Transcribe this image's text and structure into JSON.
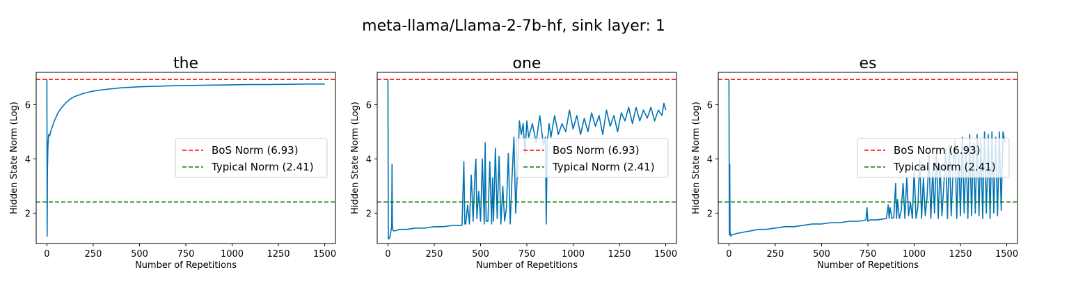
{
  "figure": {
    "suptitle": "meta-llama/Llama-2-7b-hf, sink layer: 1"
  },
  "chart_data": [
    {
      "type": "line",
      "title": "the",
      "xlabel": "Number of Repetitions",
      "ylabel": "Hidden State Norm (Log)",
      "xlim": [
        -58,
        1558
      ],
      "ylim": [
        0.88,
        7.19
      ],
      "xticks": [
        0,
        250,
        500,
        750,
        1000,
        1250,
        1500
      ],
      "yticks": [
        2,
        4,
        6
      ],
      "legend": {
        "position": "center-right",
        "entries": [
          "BoS Norm (6.93)",
          "Typical Norm (2.41)"
        ]
      },
      "reference_lines": [
        {
          "name": "BoS Norm (6.93)",
          "y": 6.93,
          "color": "#ff0000",
          "style": "dashed"
        },
        {
          "name": "Typical Norm (2.41)",
          "y": 2.41,
          "color": "#008000",
          "style": "dashed"
        }
      ],
      "series": [
        {
          "color": "#0072b2",
          "x": [
            0,
            1,
            2,
            3,
            5,
            8,
            10,
            15,
            20,
            30,
            40,
            50,
            60,
            75,
            100,
            125,
            150,
            200,
            250,
            300,
            400,
            500,
            600,
            700,
            800,
            900,
            1000,
            1100,
            1200,
            1300,
            1400,
            1500
          ],
          "y": [
            6.93,
            1.15,
            2.3,
            3.6,
            4.4,
            4.8,
            4.9,
            4.85,
            5.0,
            5.2,
            5.4,
            5.55,
            5.7,
            5.85,
            6.05,
            6.2,
            6.3,
            6.42,
            6.5,
            6.55,
            6.62,
            6.66,
            6.68,
            6.7,
            6.71,
            6.72,
            6.73,
            6.74,
            6.74,
            6.75,
            6.76,
            6.76
          ]
        }
      ]
    },
    {
      "type": "line",
      "title": "one",
      "xlabel": "Number of Repetitions",
      "ylabel": "Hidden State Norm (Log)",
      "xlim": [
        -58,
        1558
      ],
      "ylim": [
        0.88,
        7.19
      ],
      "xticks": [
        0,
        250,
        500,
        750,
        1000,
        1250,
        1500
      ],
      "yticks": [
        2,
        4,
        6
      ],
      "legend": {
        "position": "center-right",
        "entries": [
          "BoS Norm (6.93)",
          "Typical Norm (2.41)"
        ]
      },
      "reference_lines": [
        {
          "name": "BoS Norm (6.93)",
          "y": 6.93,
          "color": "#ff0000",
          "style": "dashed"
        },
        {
          "name": "Typical Norm (2.41)",
          "y": 2.41,
          "color": "#008000",
          "style": "dashed"
        }
      ],
      "series": [
        {
          "color": "#0072b2",
          "x": [
            0,
            2,
            5,
            8,
            12,
            15,
            20,
            22,
            24,
            26,
            28,
            32,
            40,
            60,
            100,
            150,
            200,
            250,
            300,
            350,
            400,
            410,
            415,
            420,
            430,
            440,
            450,
            460,
            470,
            475,
            480,
            490,
            500,
            510,
            520,
            525,
            530,
            540,
            550,
            560,
            565,
            570,
            580,
            590,
            600,
            610,
            620,
            630,
            640,
            650,
            660,
            670,
            680,
            690,
            700,
            710,
            720,
            730,
            740,
            750,
            760,
            780,
            800,
            820,
            840,
            850,
            855,
            860,
            865,
            870,
            880,
            900,
            920,
            940,
            960,
            980,
            1000,
            1020,
            1040,
            1060,
            1080,
            1100,
            1120,
            1140,
            1160,
            1180,
            1200,
            1220,
            1240,
            1260,
            1280,
            1300,
            1320,
            1340,
            1360,
            1380,
            1400,
            1420,
            1440,
            1460,
            1480,
            1490,
            1500
          ],
          "y": [
            6.93,
            1.05,
            1.05,
            1.1,
            1.15,
            1.3,
            1.5,
            3.8,
            1.6,
            1.4,
            1.35,
            1.35,
            1.35,
            1.4,
            1.4,
            1.45,
            1.45,
            1.5,
            1.5,
            1.55,
            1.55,
            3.9,
            1.6,
            1.6,
            2.3,
            1.6,
            3.4,
            1.7,
            3.5,
            4.0,
            1.8,
            2.8,
            1.7,
            4.0,
            1.6,
            4.6,
            1.7,
            1.7,
            3.9,
            1.6,
            3.3,
            1.7,
            4.4,
            1.8,
            4.1,
            1.6,
            3.0,
            1.7,
            2.2,
            4.2,
            1.6,
            3.3,
            4.8,
            2.0,
            3.7,
            5.4,
            4.9,
            5.3,
            4.2,
            5.4,
            4.8,
            5.3,
            4.6,
            5.6,
            4.5,
            4.8,
            1.6,
            4.7,
            4.9,
            5.3,
            4.8,
            5.6,
            4.9,
            5.3,
            5.0,
            5.8,
            5.1,
            5.6,
            4.9,
            5.5,
            5.0,
            5.7,
            5.2,
            5.6,
            4.9,
            5.8,
            5.2,
            5.6,
            5.0,
            5.7,
            5.4,
            5.9,
            5.3,
            5.9,
            5.4,
            5.8,
            5.5,
            5.9,
            5.4,
            5.8,
            5.6,
            6.05,
            5.8
          ]
        }
      ]
    },
    {
      "type": "line",
      "title": "es",
      "xlabel": "Number of Repetitions",
      "ylabel": "Hidden State Norm (Log)",
      "xlim": [
        -58,
        1558
      ],
      "ylim": [
        0.88,
        7.19
      ],
      "xticks": [
        0,
        250,
        500,
        750,
        1000,
        1250,
        1500
      ],
      "yticks": [
        2,
        4,
        6
      ],
      "legend": {
        "position": "center-right",
        "entries": [
          "BoS Norm (6.93)",
          "Typical Norm (2.41)"
        ]
      },
      "reference_lines": [
        {
          "name": "BoS Norm (6.93)",
          "y": 6.93,
          "color": "#ff0000",
          "style": "dashed"
        },
        {
          "name": "Typical Norm (2.41)",
          "y": 2.41,
          "color": "#008000",
          "style": "dashed"
        }
      ],
      "series": [
        {
          "color": "#0072b2",
          "x": [
            0,
            2,
            4,
            6,
            8,
            10,
            14,
            20,
            40,
            80,
            120,
            160,
            200,
            250,
            300,
            350,
            400,
            450,
            500,
            550,
            600,
            650,
            700,
            740,
            745,
            750,
            760,
            800,
            850,
            860,
            865,
            870,
            880,
            890,
            900,
            905,
            910,
            920,
            930,
            940,
            950,
            960,
            970,
            980,
            990,
            1000,
            1010,
            1020,
            1030,
            1040,
            1050,
            1060,
            1070,
            1080,
            1090,
            1100,
            1110,
            1120,
            1130,
            1140,
            1150,
            1160,
            1170,
            1180,
            1190,
            1200,
            1210,
            1220,
            1230,
            1240,
            1250,
            1260,
            1270,
            1280,
            1290,
            1300,
            1310,
            1320,
            1330,
            1340,
            1350,
            1360,
            1370,
            1380,
            1390,
            1400,
            1410,
            1420,
            1430,
            1440,
            1450,
            1460,
            1470,
            1480,
            1490
          ],
          "y": [
            6.93,
            1.2,
            3.8,
            1.3,
            1.2,
            1.15,
            1.2,
            1.2,
            1.25,
            1.3,
            1.35,
            1.4,
            1.4,
            1.45,
            1.5,
            1.5,
            1.55,
            1.6,
            1.6,
            1.65,
            1.65,
            1.7,
            1.7,
            1.75,
            2.2,
            1.7,
            1.75,
            1.75,
            1.8,
            2.3,
            1.8,
            2.2,
            1.8,
            1.85,
            3.1,
            1.8,
            2.5,
            1.8,
            2.1,
            3.1,
            1.8,
            3.3,
            1.9,
            2.4,
            1.8,
            3.6,
            1.8,
            2.2,
            4.0,
            1.8,
            3.3,
            1.9,
            2.6,
            4.1,
            1.8,
            3.6,
            2.0,
            4.3,
            1.8,
            3.8,
            1.9,
            3.0,
            4.4,
            1.8,
            4.5,
            1.9,
            3.5,
            4.7,
            1.8,
            4.2,
            1.9,
            4.8,
            2.0,
            4.4,
            1.8,
            4.9,
            1.9,
            4.6,
            2.0,
            4.9,
            1.9,
            4.7,
            1.8,
            5.0,
            2.0,
            4.9,
            1.8,
            5.0,
            2.0,
            4.8,
            1.9,
            5.0,
            2.1,
            5.0,
            4.6
          ]
        }
      ]
    }
  ]
}
